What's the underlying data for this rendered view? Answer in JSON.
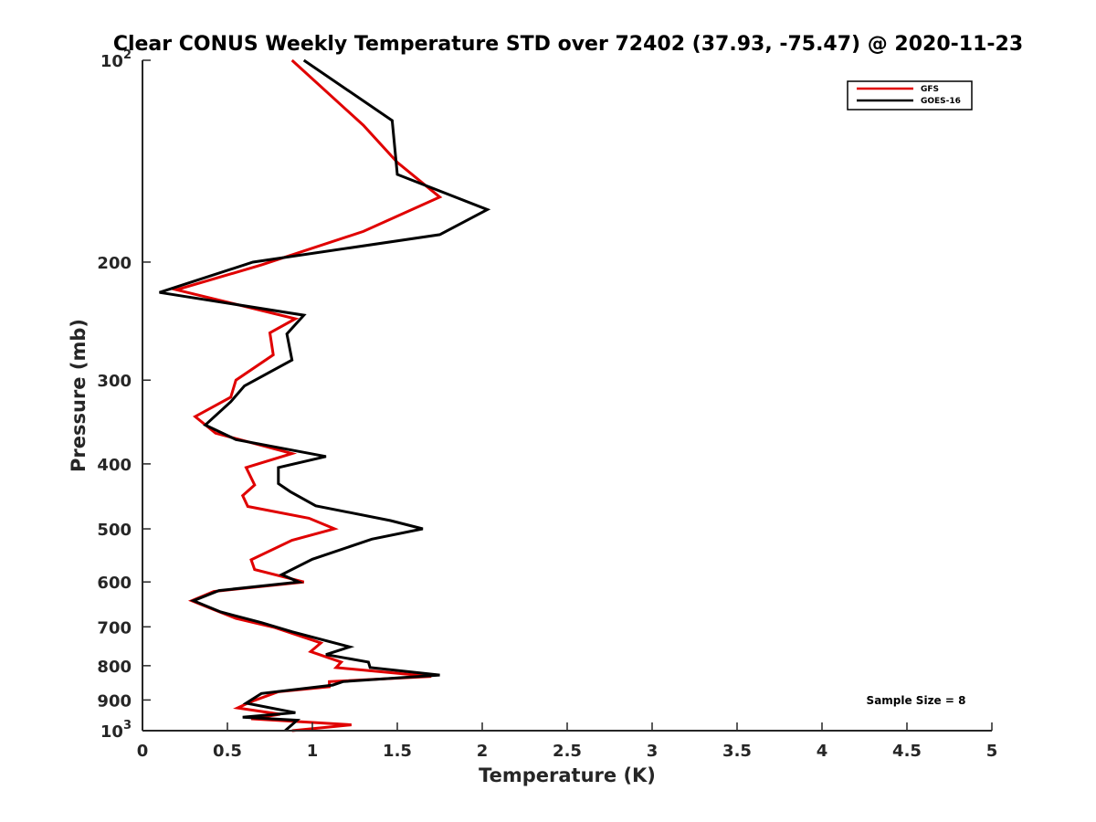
{
  "chart_data": {
    "type": "line",
    "title": "Clear CONUS Weekly Temperature STD over 72402 (37.93, -75.47) @ 2020-11-23",
    "xlabel": "Temperature (K)",
    "ylabel": "Pressure (mb)",
    "xlim": [
      0,
      5
    ],
    "ylim": [
      100,
      1000
    ],
    "yscale": "log",
    "yreversed": true,
    "xticks": [
      0,
      0.5,
      1,
      1.5,
      2,
      2.5,
      3,
      3.5,
      4,
      4.5,
      5
    ],
    "xtick_labels": [
      "0",
      "0.5",
      "1",
      "1.5",
      "2",
      "2.5",
      "3",
      "3.5",
      "4",
      "4.5",
      "5"
    ],
    "yticks": [
      {
        "value": 100,
        "base": "10",
        "exp": "2"
      },
      {
        "value": 200,
        "label": "200"
      },
      {
        "value": 300,
        "label": "300"
      },
      {
        "value": 400,
        "label": "400"
      },
      {
        "value": 500,
        "label": "500"
      },
      {
        "value": 600,
        "label": "600"
      },
      {
        "value": 700,
        "label": "700"
      },
      {
        "value": 800,
        "label": "800"
      },
      {
        "value": 900,
        "label": "900"
      },
      {
        "value": 1000,
        "base": "10",
        "exp": "3"
      }
    ],
    "grid": false,
    "legend_position": "top-right",
    "annotation": "Sample Size = 8",
    "series": [
      {
        "name": "GFS",
        "color": "#e00000",
        "points": [
          [
            0.88,
            100
          ],
          [
            1.3,
            125
          ],
          [
            1.5,
            142
          ],
          [
            1.75,
            160
          ],
          [
            1.3,
            180
          ],
          [
            0.7,
            202
          ],
          [
            0.2,
            220
          ],
          [
            0.9,
            243
          ],
          [
            0.75,
            255
          ],
          [
            0.77,
            275
          ],
          [
            0.55,
            300
          ],
          [
            0.52,
            318
          ],
          [
            0.31,
            340
          ],
          [
            0.43,
            360
          ],
          [
            0.88,
            386
          ],
          [
            0.61,
            405
          ],
          [
            0.66,
            430
          ],
          [
            0.59,
            446
          ],
          [
            0.62,
            463
          ],
          [
            0.98,
            482
          ],
          [
            1.13,
            500
          ],
          [
            0.88,
            520
          ],
          [
            0.64,
            556
          ],
          [
            0.66,
            575
          ],
          [
            0.95,
            600
          ],
          [
            0.42,
            620
          ],
          [
            0.29,
            640
          ],
          [
            0.42,
            660
          ],
          [
            0.55,
            680
          ],
          [
            0.78,
            702
          ],
          [
            1.05,
            740
          ],
          [
            0.99,
            762
          ],
          [
            1.17,
            790
          ],
          [
            1.14,
            805
          ],
          [
            1.7,
            830
          ],
          [
            1.1,
            845
          ],
          [
            1.1,
            860
          ],
          [
            0.8,
            875
          ],
          [
            0.64,
            905
          ],
          [
            0.56,
            925
          ],
          [
            0.81,
            945
          ],
          [
            0.64,
            960
          ],
          [
            1.23,
            980
          ],
          [
            0.88,
            1000
          ]
        ]
      },
      {
        "name": "GOES-16",
        "color": "#000000",
        "points": [
          [
            0.95,
            100
          ],
          [
            1.47,
            123
          ],
          [
            1.5,
            148
          ],
          [
            2.03,
            167
          ],
          [
            1.75,
            182
          ],
          [
            0.65,
            200
          ],
          [
            0.1,
            222
          ],
          [
            0.95,
            240
          ],
          [
            0.85,
            256
          ],
          [
            0.88,
            280
          ],
          [
            0.6,
            306
          ],
          [
            0.52,
            323
          ],
          [
            0.37,
            350
          ],
          [
            0.55,
            368
          ],
          [
            1.08,
            390
          ],
          [
            0.8,
            405
          ],
          [
            0.8,
            428
          ],
          [
            0.87,
            440
          ],
          [
            1.02,
            462
          ],
          [
            1.46,
            486
          ],
          [
            1.65,
            500
          ],
          [
            1.35,
            518
          ],
          [
            1.0,
            555
          ],
          [
            0.82,
            585
          ],
          [
            0.92,
            600
          ],
          [
            0.45,
            618
          ],
          [
            0.3,
            640
          ],
          [
            0.46,
            665
          ],
          [
            0.7,
            690
          ],
          [
            0.88,
            712
          ],
          [
            1.22,
            750
          ],
          [
            1.08,
            770
          ],
          [
            1.33,
            790
          ],
          [
            1.34,
            805
          ],
          [
            1.75,
            826
          ],
          [
            1.18,
            845
          ],
          [
            1.12,
            855
          ],
          [
            0.7,
            880
          ],
          [
            0.61,
            910
          ],
          [
            0.9,
            940
          ],
          [
            0.59,
            955
          ],
          [
            0.91,
            965
          ],
          [
            0.84,
            1000
          ]
        ]
      }
    ]
  }
}
